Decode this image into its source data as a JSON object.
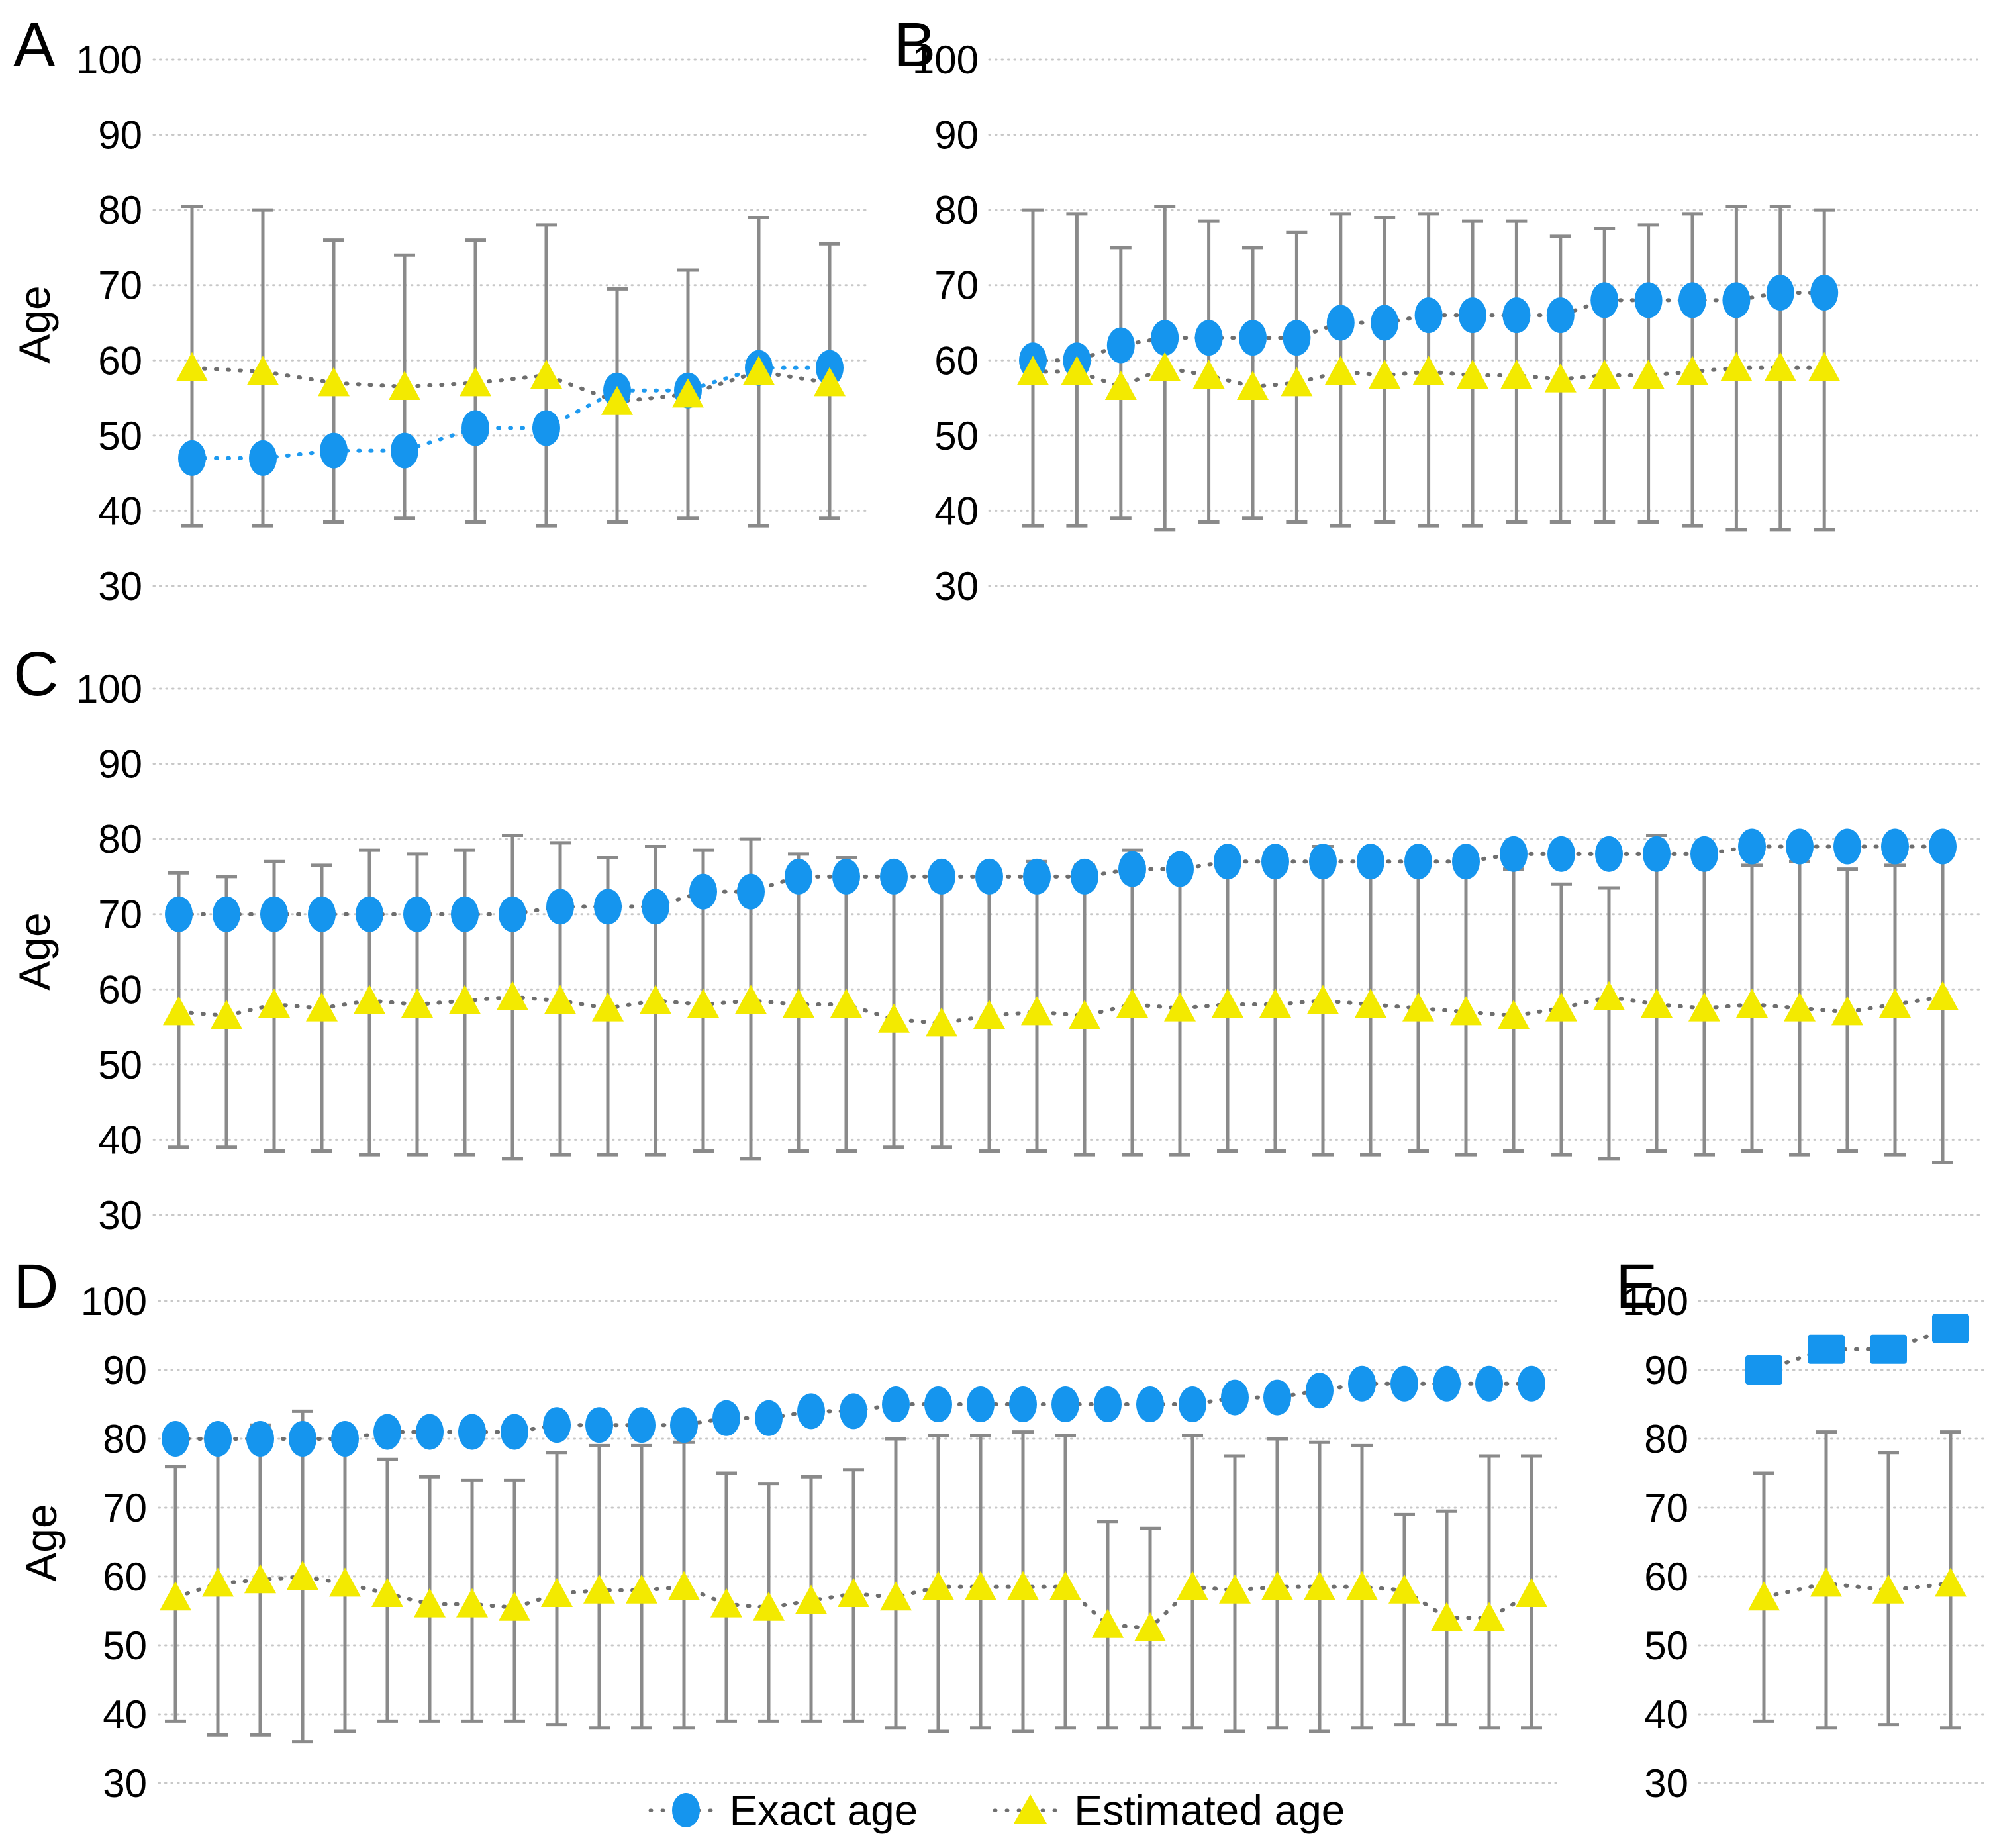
{
  "figure": {
    "y_axis_label": "Age",
    "legend": {
      "position": "bottom-center",
      "items": [
        {
          "label": "Exact age",
          "series": "exact",
          "marker": "circle"
        },
        {
          "label": "Estimated age",
          "series": "estimated",
          "marker": "triangle"
        }
      ]
    },
    "colors": {
      "exact": "#1595EE",
      "estimated": "#F3EA00",
      "error_bar": "#8A8A8A",
      "grid": "#C8C8C8",
      "connector": "#6E6E6E",
      "exact_connector_panel_A": "#1E9AF0",
      "text": "#000000"
    },
    "panels_order": [
      "A",
      "B",
      "C",
      "D",
      "E"
    ]
  },
  "chart_data": [
    {
      "panel": "A",
      "type": "scatter",
      "title": "",
      "xlabel": "",
      "ylabel": "Age",
      "ylim": [
        30,
        100
      ],
      "yticks": [
        100,
        90,
        80,
        70,
        60,
        50,
        40,
        30
      ],
      "grid": "dotted",
      "marker_exact": "circle",
      "marker_estimated": "triangle",
      "series": [
        {
          "name": "Exact age",
          "values": [
            47,
            47,
            48,
            48,
            51,
            51,
            56,
            56,
            59,
            59
          ]
        },
        {
          "name": "Estimated age",
          "values": [
            59,
            58.5,
            57,
            56.5,
            57,
            58,
            54.5,
            55.5,
            58.5,
            57
          ]
        }
      ],
      "error_range_estimated": [
        [
          38,
          80.5
        ],
        [
          38,
          80
        ],
        [
          38.5,
          76
        ],
        [
          39,
          74
        ],
        [
          38.5,
          76
        ],
        [
          38,
          78
        ],
        [
          38.5,
          69.5
        ],
        [
          39,
          72
        ],
        [
          38,
          79
        ],
        [
          39,
          75.5
        ]
      ]
    },
    {
      "panel": "B",
      "type": "scatter",
      "title": "",
      "xlabel": "",
      "ylabel": "",
      "ylim": [
        30,
        100
      ],
      "yticks": [
        100,
        90,
        80,
        70,
        60,
        50,
        40,
        30
      ],
      "grid": "dotted",
      "marker_exact": "circle",
      "marker_estimated": "triangle",
      "series": [
        {
          "name": "Exact age",
          "values": [
            60,
            60,
            62,
            63,
            63,
            63,
            63,
            65,
            65,
            66,
            66,
            66,
            66,
            68,
            68,
            68,
            68,
            69,
            69
          ]
        },
        {
          "name": "Estimated age",
          "values": [
            58.5,
            58.5,
            56.5,
            59,
            58,
            56.5,
            57,
            58.5,
            58,
            58.5,
            58,
            58,
            57.5,
            58,
            58,
            58.5,
            59,
            59,
            59
          ]
        }
      ],
      "error_range_estimated": [
        [
          38,
          80
        ],
        [
          38,
          79.5
        ],
        [
          39,
          75
        ],
        [
          37.5,
          80.5
        ],
        [
          38.5,
          78.5
        ],
        [
          39,
          75
        ],
        [
          38.5,
          77
        ],
        [
          38,
          79.5
        ],
        [
          38.5,
          79
        ],
        [
          38,
          79.5
        ],
        [
          38,
          78.5
        ],
        [
          38.5,
          78.5
        ],
        [
          38.5,
          76.5
        ],
        [
          38.5,
          77.5
        ],
        [
          38.5,
          78
        ],
        [
          38,
          79.5
        ],
        [
          37.5,
          80.5
        ],
        [
          37.5,
          80.5
        ],
        [
          37.5,
          80
        ]
      ]
    },
    {
      "panel": "C",
      "type": "scatter",
      "title": "",
      "xlabel": "",
      "ylabel": "Age",
      "ylim": [
        30,
        100
      ],
      "yticks": [
        100,
        90,
        80,
        70,
        60,
        50,
        40,
        30
      ],
      "grid": "dotted",
      "marker_exact": "circle",
      "marker_estimated": "triangle",
      "series": [
        {
          "name": "Exact age",
          "values": [
            70,
            70,
            70,
            70,
            70,
            70,
            70,
            70,
            71,
            71,
            71,
            73,
            73,
            75,
            75,
            75,
            75,
            75,
            75,
            75,
            76,
            76,
            77,
            77,
            77,
            77,
            77,
            77,
            78,
            78,
            78,
            78,
            78,
            79,
            79,
            79,
            79,
            79
          ]
        },
        {
          "name": "Estimated age",
          "values": [
            57,
            56.5,
            58,
            57.5,
            58.5,
            58,
            58.5,
            59,
            58.5,
            57.5,
            58.5,
            58,
            58.5,
            58,
            58,
            56,
            55.5,
            56.5,
            57,
            56.5,
            58,
            57.5,
            58,
            58,
            58.5,
            58,
            57.5,
            57,
            56.5,
            57.5,
            59,
            58,
            57.5,
            58,
            57.5,
            57,
            58,
            59
          ]
        }
      ],
      "error_range_estimated": [
        [
          39,
          75.5
        ],
        [
          39,
          75
        ],
        [
          38.5,
          77
        ],
        [
          38.5,
          76.5
        ],
        [
          38,
          78.5
        ],
        [
          38,
          78
        ],
        [
          38,
          78.5
        ],
        [
          37.5,
          80.5
        ],
        [
          38,
          79.5
        ],
        [
          38,
          77.5
        ],
        [
          38,
          79
        ],
        [
          38.5,
          78.5
        ],
        [
          37.5,
          80
        ],
        [
          38.5,
          78
        ],
        [
          38.5,
          77.5
        ],
        [
          39,
          74
        ],
        [
          39,
          73.5
        ],
        [
          38.5,
          76
        ],
        [
          38.5,
          77
        ],
        [
          38,
          76.5
        ],
        [
          38,
          78.5
        ],
        [
          38,
          77.5
        ],
        [
          38.5,
          78
        ],
        [
          38.5,
          78.5
        ],
        [
          38,
          79
        ],
        [
          38,
          78
        ],
        [
          38.5,
          77.5
        ],
        [
          38,
          77
        ],
        [
          38.5,
          76
        ],
        [
          38,
          74
        ],
        [
          37.5,
          73.5
        ],
        [
          38.5,
          80.5
        ],
        [
          38,
          78
        ],
        [
          38.5,
          76.5
        ],
        [
          38,
          77
        ],
        [
          38.5,
          76
        ],
        [
          38,
          76.5
        ],
        [
          37,
          80.5
        ]
      ]
    },
    {
      "panel": "D",
      "type": "scatter",
      "title": "",
      "xlabel": "",
      "ylabel": "Age",
      "ylim": [
        30,
        100
      ],
      "yticks": [
        100,
        90,
        80,
        70,
        60,
        50,
        40,
        30
      ],
      "grid": "dotted",
      "marker_exact": "circle",
      "marker_estimated": "triangle",
      "series": [
        {
          "name": "Exact age",
          "values": [
            80,
            80,
            80,
            80,
            80,
            81,
            81,
            81,
            81,
            82,
            82,
            82,
            82,
            83,
            83,
            84,
            84,
            85,
            85,
            85,
            85,
            85,
            85,
            85,
            85,
            86,
            86,
            87,
            88,
            88,
            88,
            88,
            88
          ]
        },
        {
          "name": "Estimated age",
          "values": [
            57,
            59,
            59.5,
            60,
            59,
            57.5,
            56,
            56,
            55.5,
            57.5,
            58,
            58,
            58.5,
            56,
            55.5,
            56.5,
            57.5,
            57,
            58.5,
            58.5,
            58.5,
            58.5,
            53,
            52.5,
            58.5,
            58,
            58.5,
            58.5,
            58.5,
            58,
            54,
            54,
            57.5
          ]
        }
      ],
      "error_range_estimated": [
        [
          39,
          76
        ],
        [
          37,
          81.5
        ],
        [
          37,
          82
        ],
        [
          36,
          84
        ],
        [
          37.5,
          81
        ],
        [
          39,
          77
        ],
        [
          39,
          74.5
        ],
        [
          39,
          74
        ],
        [
          39,
          74
        ],
        [
          38.5,
          78
        ],
        [
          38,
          79
        ],
        [
          38,
          79
        ],
        [
          38,
          79.5
        ],
        [
          39,
          75
        ],
        [
          39,
          73.5
        ],
        [
          39,
          74.5
        ],
        [
          39,
          75.5
        ],
        [
          38,
          80
        ],
        [
          37.5,
          80.5
        ],
        [
          38,
          80.5
        ],
        [
          37.5,
          81
        ],
        [
          38,
          80.5
        ],
        [
          38,
          68
        ],
        [
          38,
          67
        ],
        [
          38,
          80.5
        ],
        [
          37.5,
          77.5
        ],
        [
          38,
          80
        ],
        [
          37.5,
          79.5
        ],
        [
          38,
          79
        ],
        [
          38.5,
          69
        ],
        [
          38.5,
          69.5
        ],
        [
          38,
          77.5
        ],
        [
          38,
          77.5
        ]
      ]
    },
    {
      "panel": "E",
      "type": "scatter",
      "title": "",
      "xlabel": "",
      "ylabel": "",
      "ylim": [
        30,
        100
      ],
      "yticks": [
        100,
        90,
        80,
        70,
        60,
        50,
        40,
        30
      ],
      "grid": "dotted",
      "marker_exact": "square",
      "marker_estimated": "triangle",
      "series": [
        {
          "name": "Exact age",
          "values": [
            90,
            93,
            93,
            96
          ]
        },
        {
          "name": "Estimated age",
          "values": [
            57,
            59,
            58,
            59
          ]
        }
      ],
      "error_range_estimated": [
        [
          39,
          75
        ],
        [
          38,
          81
        ],
        [
          38.5,
          78
        ],
        [
          38,
          81
        ]
      ]
    }
  ]
}
